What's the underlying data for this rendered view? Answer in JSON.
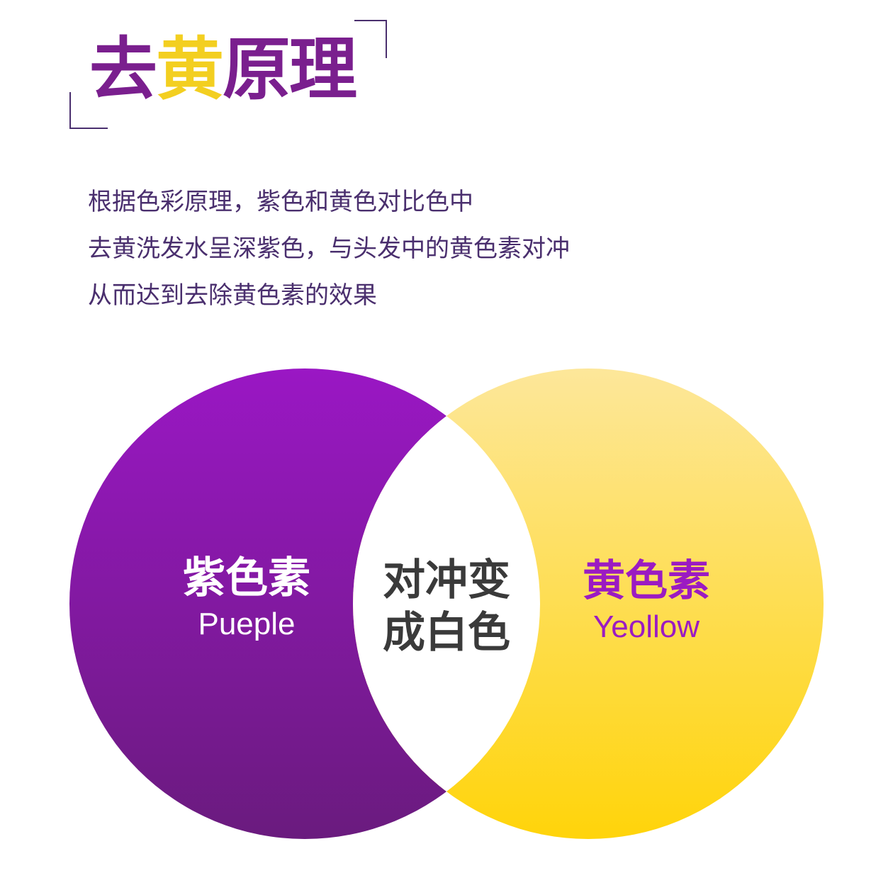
{
  "title": {
    "part1": "去",
    "part2": "黄",
    "part3": "原理"
  },
  "description": {
    "line1": "根据色彩原理，紫色和黄色对比色中",
    "line2": "去黄洗发水呈深紫色，与头发中的黄色素对冲",
    "line3": "从而达到去除黄色素的效果"
  },
  "venn": {
    "purple": {
      "label_cn": "紫色素",
      "label_en": "Pueple",
      "color_top": "#9a17c4",
      "color_bottom": "#6a1b7e"
    },
    "yellow": {
      "label_cn": "黄色素",
      "label_en": "Yeollow",
      "color_top": "#fde79a",
      "color_bottom": "#ffd40a"
    },
    "overlap": {
      "line1": "对冲变",
      "line2": "成白色",
      "color": "#ffffff"
    }
  },
  "colors": {
    "title_purple": "#7a1f8e",
    "title_yellow": "#f3cf20",
    "text": "#4a2f6e"
  }
}
